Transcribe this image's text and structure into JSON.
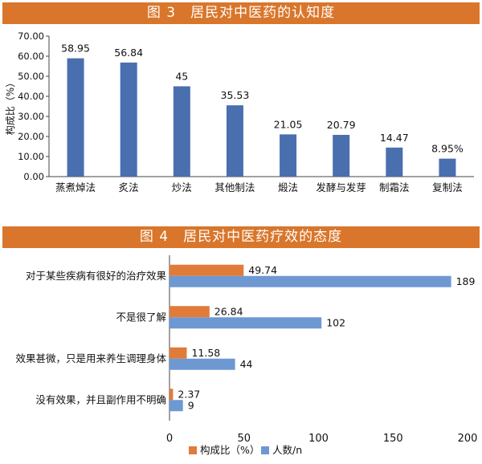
{
  "chart_data": [
    {
      "type": "bar",
      "title": "图 3　居民对中医药的认知度",
      "ylabel": "构成比（%）",
      "ylim": [
        0,
        70
      ],
      "yticks": [
        "0.00",
        "10.00",
        "20.00",
        "30.00",
        "40.00",
        "50.00",
        "60.00",
        "70.00"
      ],
      "grid": false,
      "categories": [
        "蒸煮焯法",
        "炙法",
        "炒法",
        "其他制法",
        "煅法",
        "发酵与发芽",
        "制霜法",
        "复制法"
      ],
      "values": [
        58.95,
        56.84,
        45,
        35.53,
        21.05,
        20.79,
        14.47,
        8.95
      ],
      "value_labels": [
        "58.95",
        "56.84",
        "45",
        "35.53",
        "21.05",
        "20.79",
        "14.47",
        "8.95%"
      ],
      "colors": {
        "bar": "#4a6faf"
      }
    },
    {
      "type": "bar",
      "orientation": "horizontal",
      "title": "图 4　居民对中医药疗效的态度",
      "xlim": [
        0,
        200
      ],
      "xticks": [
        "0",
        "50",
        "100",
        "150",
        "200"
      ],
      "grid": false,
      "legend": "bottom",
      "categories": [
        "对于某些疾病有很好的治疗效果",
        "不是很了解",
        "效果甚微，只是用来养生调理身体",
        "没有效果，并且副作用不明确"
      ],
      "series": [
        {
          "name": "构成比（%）",
          "values": [
            49.74,
            26.84,
            11.58,
            2.37
          ],
          "labels": [
            "49.74",
            "26.84",
            "11.58",
            "2.37"
          ],
          "color": "#e07b39"
        },
        {
          "name": "人数/n",
          "values": [
            189,
            102,
            44,
            9
          ],
          "labels": [
            "189",
            "102",
            "44",
            "9"
          ],
          "color": "#6e98d2"
        }
      ]
    }
  ]
}
